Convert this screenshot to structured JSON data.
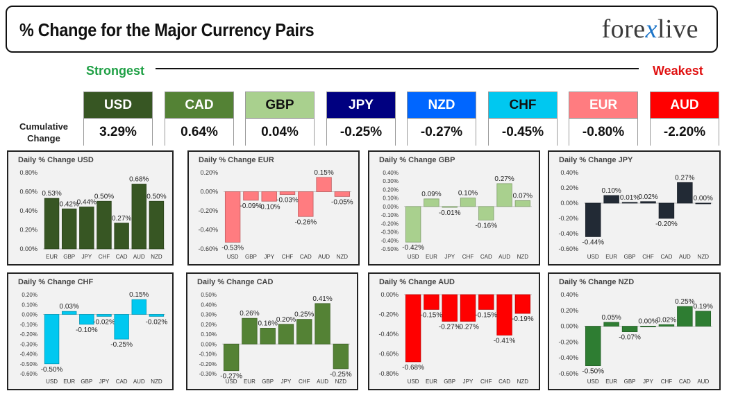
{
  "header": {
    "title": "% Change for the Major Currency Pairs",
    "logo_left": "fore",
    "logo_x": "x",
    "logo_right": "live"
  },
  "scale": {
    "strongest": "Strongest",
    "weakest": "Weakest"
  },
  "cumulative": {
    "label_line1": "Cumulative",
    "label_line2": "Change",
    "currencies": [
      {
        "code": "USD",
        "value": "3.29%",
        "bg": "#375623",
        "fg": "#ffffff"
      },
      {
        "code": "CAD",
        "value": "0.64%",
        "bg": "#548235",
        "fg": "#ffffff"
      },
      {
        "code": "GBP",
        "value": "0.04%",
        "bg": "#a9d08e",
        "fg": "#111111"
      },
      {
        "code": "JPY",
        "value": "-0.25%",
        "bg": "#000080",
        "fg": "#ffffff"
      },
      {
        "code": "NZD",
        "value": "-0.27%",
        "bg": "#0066ff",
        "fg": "#ffffff"
      },
      {
        "code": "CHF",
        "value": "-0.45%",
        "bg": "#00c8f0",
        "fg": "#111111"
      },
      {
        "code": "EUR",
        "value": "-0.80%",
        "bg": "#ff7c80",
        "fg": "#ffffff"
      },
      {
        "code": "AUD",
        "value": "-2.20%",
        "bg": "#ff0000",
        "fg": "#ffffff"
      }
    ]
  },
  "chart_data": [
    {
      "type": "bar",
      "title": "Daily % Change USD",
      "categories": [
        "EUR",
        "GBP",
        "JPY",
        "CHF",
        "CAD",
        "AUD",
        "NZD"
      ],
      "values": [
        0.53,
        0.42,
        0.44,
        0.5,
        0.27,
        0.68,
        0.5
      ],
      "labels": [
        "0.53%",
        "0.42%",
        "0.44%",
        "0.50%",
        "0.27%",
        "0.68%",
        "0.50%"
      ],
      "ylim": [
        0,
        0.8
      ],
      "yticks": [
        "0.00%",
        "0.20%",
        "0.40%",
        "0.60%",
        "0.80%"
      ],
      "color": "#375623",
      "grid": false
    },
    {
      "type": "bar",
      "title": "Daily % Change EUR",
      "categories": [
        "USD",
        "GBP",
        "JPY",
        "CHF",
        "CAD",
        "AUD",
        "NZD"
      ],
      "values": [
        -0.53,
        -0.09,
        -0.1,
        -0.03,
        -0.26,
        0.15,
        -0.05
      ],
      "labels": [
        "-0.53%",
        "-0.09%",
        "-0.10%",
        "-0.03%",
        "-0.26%",
        "0.15%",
        "-0.05%"
      ],
      "ylim": [
        -0.6,
        0.2
      ],
      "yticks": [
        "-0.60%",
        "-0.40%",
        "-0.20%",
        "0.00%",
        "0.20%"
      ],
      "color": "#ff7c80",
      "grid": false
    },
    {
      "type": "bar",
      "title": "Daily % Change GBP",
      "categories": [
        "USD",
        "EUR",
        "JPY",
        "CHF",
        "CAD",
        "AUD",
        "NZD"
      ],
      "values": [
        -0.42,
        0.09,
        -0.01,
        0.1,
        -0.16,
        0.27,
        0.07
      ],
      "labels": [
        "-0.42%",
        "0.09%",
        "-0.01%",
        "0.10%",
        "-0.16%",
        "0.27%",
        "0.07%"
      ],
      "ylim": [
        -0.5,
        0.4
      ],
      "yticks": [
        "-0.50%",
        "-0.40%",
        "-0.30%",
        "-0.20%",
        "-0.10%",
        "0.00%",
        "0.10%",
        "0.20%",
        "0.30%",
        "0.40%"
      ],
      "color": "#a9d08e",
      "grid": false
    },
    {
      "type": "bar",
      "title": "Daily % Change JPY",
      "categories": [
        "USD",
        "EUR",
        "GBP",
        "CHF",
        "CAD",
        "AUD",
        "NZD"
      ],
      "values": [
        -0.44,
        0.1,
        0.01,
        0.02,
        -0.2,
        0.27,
        0.0
      ],
      "labels": [
        "-0.44%",
        "0.10%",
        "0.01%",
        "0.02%",
        "-0.20%",
        "0.27%",
        "0.00%"
      ],
      "ylim": [
        -0.6,
        0.4
      ],
      "yticks": [
        "-0.60%",
        "-0.40%",
        "-0.20%",
        "0.00%",
        "0.20%",
        "0.40%"
      ],
      "color": "#222a35",
      "grid": false
    },
    {
      "type": "bar",
      "title": "Daily % Change CHF",
      "categories": [
        "USD",
        "EUR",
        "GBP",
        "JPY",
        "CAD",
        "AUD",
        "NZD"
      ],
      "values": [
        -0.5,
        0.03,
        -0.1,
        -0.02,
        -0.25,
        0.15,
        -0.02
      ],
      "labels": [
        "-0.50%",
        "0.03%",
        "-0.10%",
        "-0.02%",
        "-0.25%",
        "0.15%",
        "-0.02%"
      ],
      "ylim": [
        -0.6,
        0.2
      ],
      "yticks": [
        "-0.60%",
        "-0.50%",
        "-0.40%",
        "-0.30%",
        "-0.20%",
        "-0.10%",
        "0.00%",
        "0.10%",
        "0.20%"
      ],
      "color": "#00c8f0",
      "grid": false
    },
    {
      "type": "bar",
      "title": "Daily % Change CAD",
      "categories": [
        "USD",
        "EUR",
        "GBP",
        "JPY",
        "CHF",
        "AUD",
        "NZD"
      ],
      "values": [
        -0.27,
        0.26,
        0.16,
        0.2,
        0.25,
        0.41,
        -0.25
      ],
      "labels": [
        "-0.27%",
        "0.26%",
        "0.16%",
        "0.20%",
        "0.25%",
        "0.41%",
        "-0.25%"
      ],
      "ylim": [
        -0.3,
        0.5
      ],
      "yticks": [
        "-0.30%",
        "-0.20%",
        "-0.10%",
        "0.00%",
        "0.10%",
        "0.20%",
        "0.30%",
        "0.40%",
        "0.50%"
      ],
      "color": "#548235",
      "grid": false
    },
    {
      "type": "bar",
      "title": "Daily % Change AUD",
      "categories": [
        "USD",
        "EUR",
        "GBP",
        "JPY",
        "CHF",
        "CAD",
        "NZD"
      ],
      "values": [
        -0.68,
        -0.15,
        -0.27,
        -0.27,
        -0.15,
        -0.41,
        -0.19
      ],
      "labels": [
        "-0.68%",
        "-0.15%",
        "-0.27%",
        "-0.27%",
        "-0.15%",
        "-0.41%",
        "-0.19%"
      ],
      "ylim": [
        -0.8,
        0
      ],
      "yticks": [
        "-0.80%",
        "-0.60%",
        "-0.40%",
        "-0.20%",
        "0.00%"
      ],
      "color": "#ff0000",
      "grid": false
    },
    {
      "type": "bar",
      "title": "Daily % Change NZD",
      "categories": [
        "USD",
        "EUR",
        "GBP",
        "JPY",
        "CHF",
        "CAD",
        "AUD"
      ],
      "values": [
        -0.5,
        0.05,
        -0.07,
        0.0,
        0.02,
        0.25,
        0.19
      ],
      "labels": [
        "-0.50%",
        "0.05%",
        "-0.07%",
        "0.00%",
        "0.02%",
        "0.25%",
        "0.19%"
      ],
      "ylim": [
        -0.6,
        0.4
      ],
      "yticks": [
        "-0.60%",
        "-0.40%",
        "-0.20%",
        "0.00%",
        "0.20%",
        "0.40%"
      ],
      "color": "#2e7d32",
      "grid": false
    }
  ]
}
